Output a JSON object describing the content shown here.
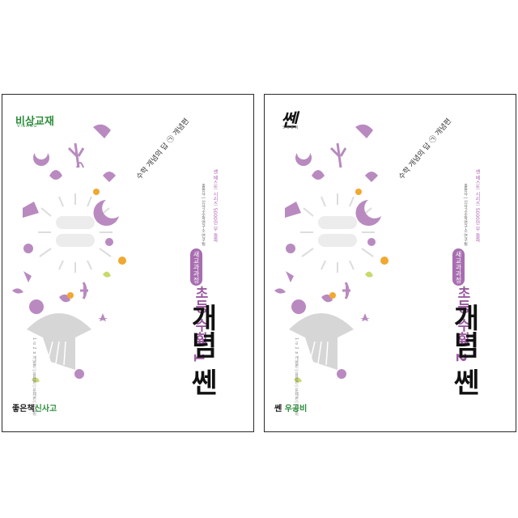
{
  "books": [
    {
      "brand_logo": "비상교재",
      "brand_sub": "VISANG",
      "tagline": "수학 개념의 답 ㉠ 개념편",
      "series_note": "쎈 베스트 시리즈 5000만 부 돌파",
      "publisher_note": "출판사 | 신사고수학연구소 연구팀",
      "badge": "새교과과정",
      "subject": "초등 수학",
      "grade": "3-1",
      "title": "개념 쎈",
      "edition_list": "1 ㄹ 2 ㅂ 개념편 | 응용편 | 문제편 | 최상위",
      "publisher_main": "좋은책",
      "publisher_accent": "신사고",
      "accent_color": "#a86db0",
      "green_color": "#2c8c3a"
    },
    {
      "brand_logo": "쎈",
      "brand_sub": "SSEN",
      "tagline": "수학 개념의 답 ㉠ 개념편",
      "series_note": "쎈 베스트 시리즈 5000만 부 돌파",
      "publisher_note": "출판사 | 신사고수학연구소 연구팀",
      "badge": "새교과과정",
      "subject": "초등 수학",
      "grade": "3-2",
      "title": "개념 쎈",
      "edition_list": "1 ㄹ 2 ㅂ 개념편 | 응용편 | 문제편 | 최상위",
      "publisher_main": "쎈",
      "publisher_accent": "우공비",
      "accent_color": "#a86db0",
      "green_color": "#2c8c3a"
    }
  ]
}
